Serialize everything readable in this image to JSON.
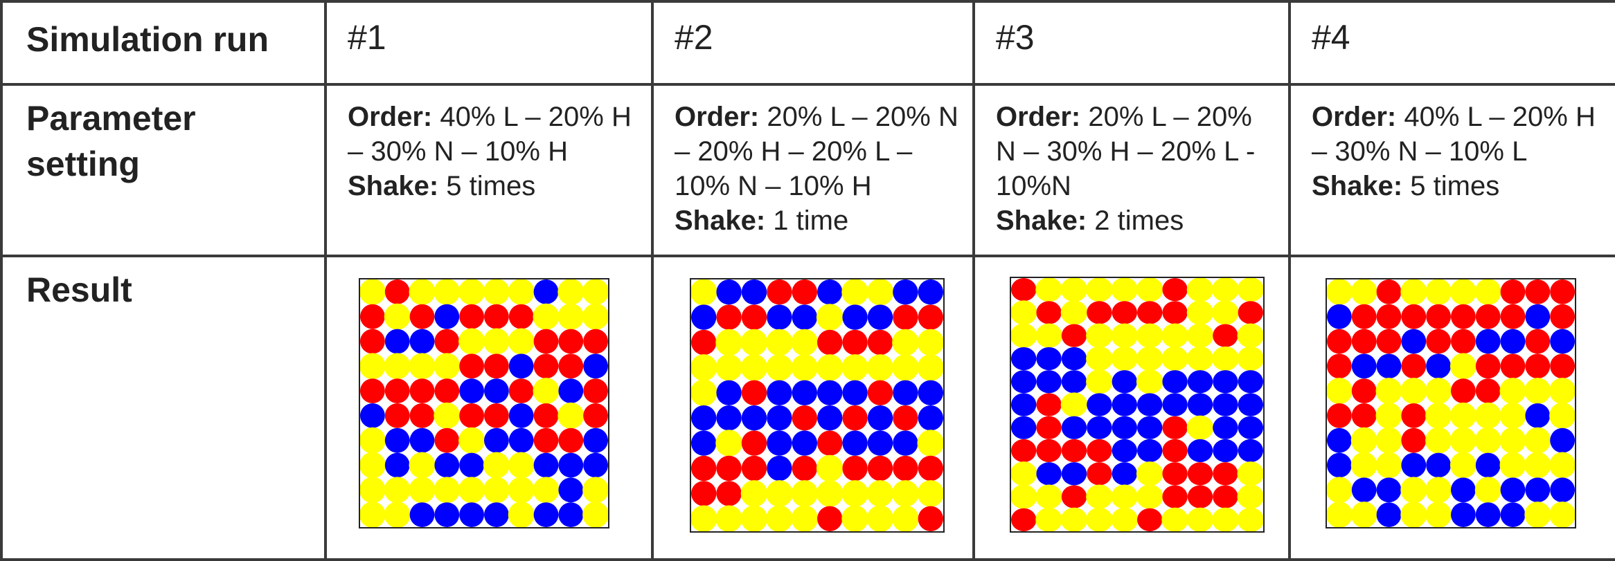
{
  "row_labels": {
    "run": "Simulation run",
    "parameter": "Parameter setting",
    "result": "Result"
  },
  "param_labels": {
    "order": "Order:",
    "shake": "Shake:"
  },
  "colors": {
    "L": "#ff0000",
    "H": "#0000ff",
    "N": "#ffff00",
    "empty": "#ffffff"
  },
  "runs": [
    {
      "id": "#1",
      "order": "40% L – 20% H – 30% N – 10% H",
      "shake": "5 times",
      "grid": [
        "NLNNNNNHNN",
        "LNLHLLLNNN",
        "LHHLNNNLLL",
        "NNNNLLHLLH",
        "LLLLHHLNHL",
        "HLLNLLHLNL",
        "NHHLNHHLLH",
        "NHNHHNNHHH",
        "NNNNNNNNHN",
        "NNHHHHNHHN"
      ]
    },
    {
      "id": "#2",
      "order": "20% L – 20% N – 20% H – 20% L – 10% N – 10% H",
      "shake": "1 time",
      "grid": [
        "NHHLLHNNHH",
        "HLLHHNHHLL",
        "LNNNNLLLNN",
        "NNNNNNNNNN",
        "NHLHHHHLHH",
        "HHHHLHLHLH",
        "HNLHHLHHHN",
        "LLLHLNLLLL",
        "LLNNNNNNNN",
        "NNNNNLNNNL"
      ]
    },
    {
      "id": "#3",
      "order": "20% L – 20% N – 30% H – 20% L - 10%N",
      "shake": "2 times",
      "grid": [
        "LNNNNNLNNN",
        "NLNLLLLNNL",
        "NNLNNNNNLN",
        "HHHNNNNNNN",
        "HHHNHNHHHH",
        "HLNHHHHHHH",
        "HLHHHHLNHH",
        "LLLLHHLHHH",
        "NHHLHNLLLN",
        "NNLNNNLLLN",
        "LNNNNLNNNN"
      ]
    },
    {
      "id": "#4",
      "order": "40% L – 20% H – 30% N – 10% L",
      "shake": "5 times",
      "grid": [
        "NNLNNNNLLL",
        "HLLLLLLLHL",
        "LLLHLLHHLH",
        "LHHLHNLLLL",
        "NLNNNLLNNN",
        "LLNLNNNNHN",
        "HNNLNNNNNH",
        "HNNHHNHNNN",
        "NHHNNHNHHH",
        "NNHNNHHHNN"
      ]
    }
  ]
}
